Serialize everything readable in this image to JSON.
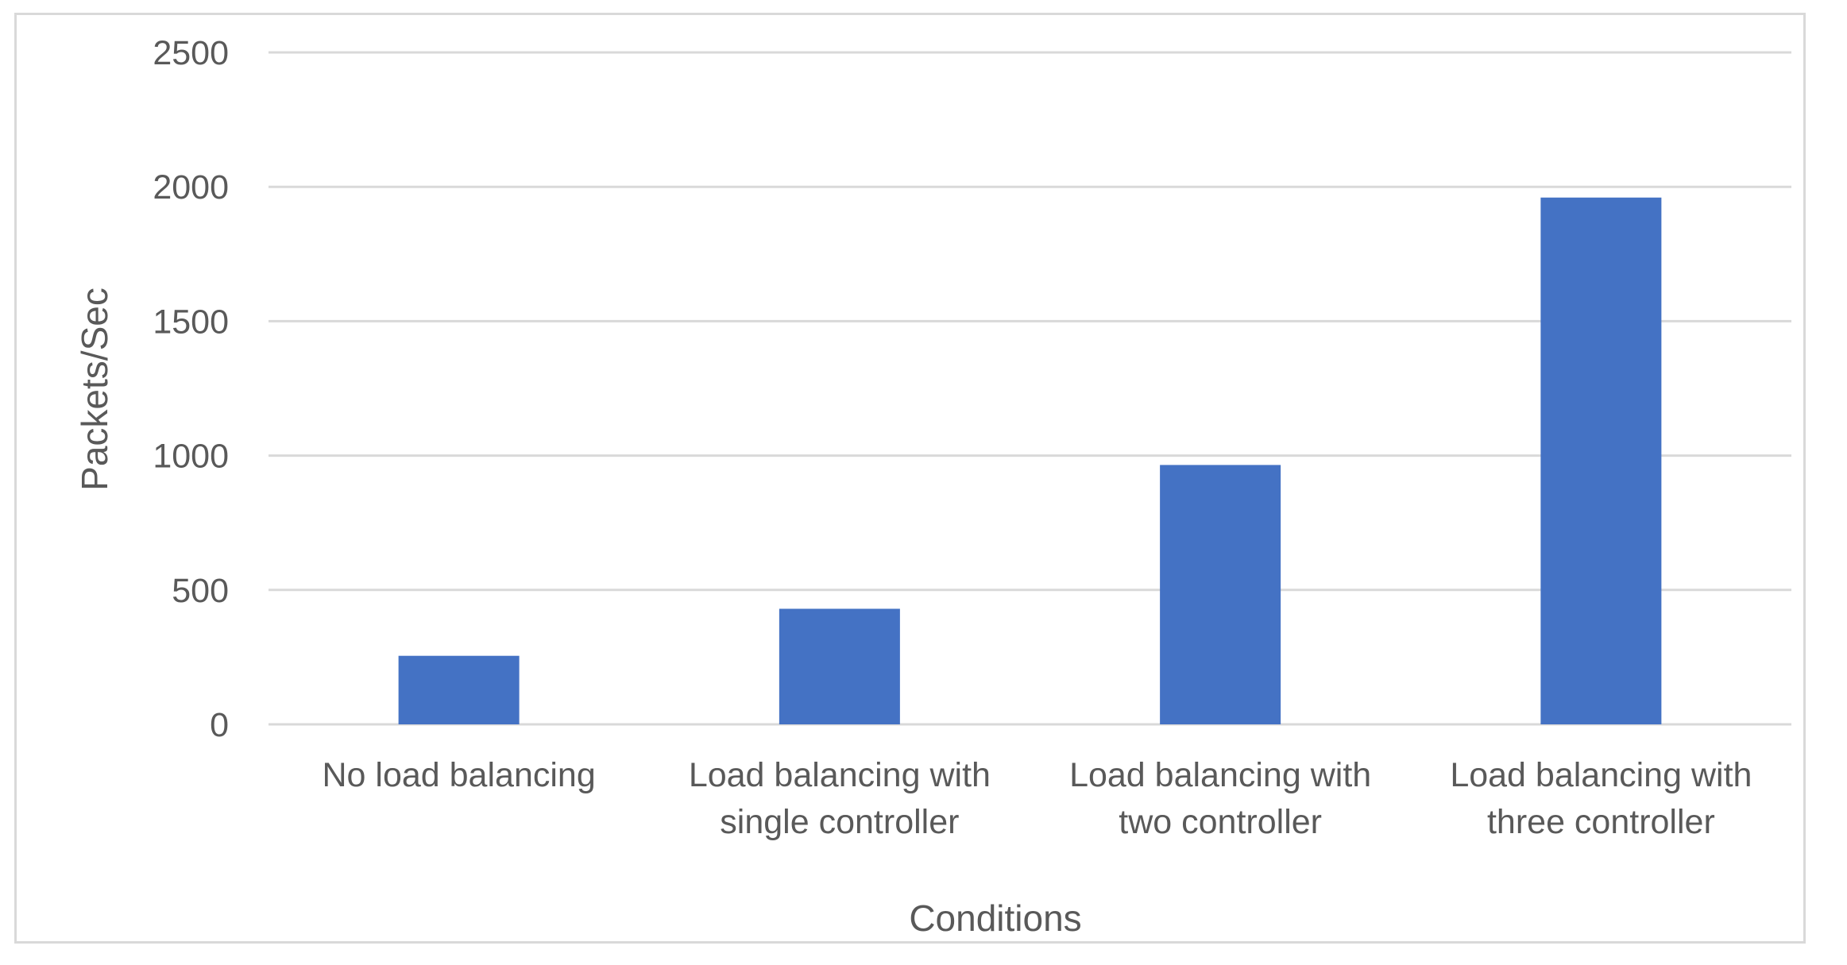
{
  "chart_data": {
    "type": "bar",
    "categories": [
      [
        "No load balancing"
      ],
      [
        "Load balancing with",
        "single controller"
      ],
      [
        "Load balancing with",
        "two controller"
      ],
      [
        "Load balancing with",
        "three controller"
      ]
    ],
    "values": [
      255,
      430,
      965,
      1960
    ],
    "xlabel": "Conditions",
    "ylabel": "Packets/Sec",
    "ylim": [
      0,
      2500
    ],
    "yticks": [
      0,
      500,
      1000,
      1500,
      2000,
      2500
    ],
    "grid": true,
    "legend": "none",
    "colors": {
      "bar": "#4472C4",
      "grid": "#d9d9d9",
      "text": "#595959"
    }
  }
}
